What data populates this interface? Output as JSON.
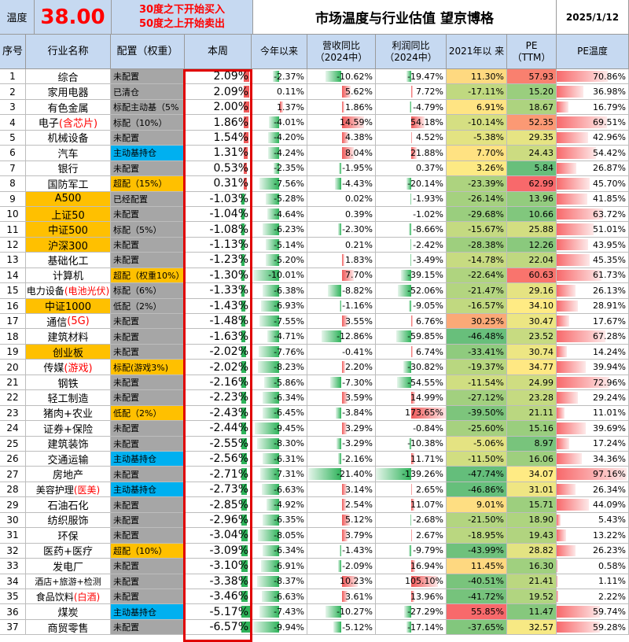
{
  "header": {
    "temp_label": "温度",
    "temp_value": "38.00",
    "rule_line1": "30度之下开始买入",
    "rule_line2": "50度之上开始卖出",
    "title": "市场温度与行业估值 望京博格",
    "date": "2025/1/12"
  },
  "columns": [
    "序号",
    "行业名称",
    "配置（权重）",
    "本周",
    "今年以来",
    "营收同比 （2024中）",
    "利润同比 （2024中）",
    "2021年以 来",
    "PE （TTM）",
    "PE温度"
  ],
  "colors": {
    "header_bg": "#c6d9f1",
    "gray_cell": "#a6a6a6",
    "yellow_cell": "#ffc000",
    "blue_cell": "#00b0f0",
    "temp_red": "#ff0000",
    "bar_green": "#2eb35a",
    "bar_red": "#f05a5a",
    "box_red": "#e00000"
  },
  "rows": [
    {
      "n": "1",
      "name": "综合",
      "name_red": "",
      "name_color": "none",
      "cfg": "未配置",
      "cfg_color": "gray",
      "week": "2.09%",
      "week_v": 2.09,
      "ytd": "-2.37%",
      "ytd_v": -2.37,
      "rev": "-10.62%",
      "rev_v": -10.62,
      "profit": "-19.47%",
      "profit_v": -19.47,
      "since2021": "11.30%",
      "since_v": 11.3,
      "pe": "57.93",
      "pe_v": 57.93,
      "pet": "70.86%",
      "pet_v": 70.86
    },
    {
      "n": "2",
      "name": "家用电器",
      "name_red": "",
      "name_color": "none",
      "cfg": "已清仓",
      "cfg_color": "gray",
      "week": "2.09%",
      "week_v": 2.09,
      "ytd": "0.11%",
      "ytd_v": 0.11,
      "rev": "5.62%",
      "rev_v": 5.62,
      "profit": "7.72%",
      "profit_v": 7.72,
      "since2021": "-17.11%",
      "since_v": -17.11,
      "pe": "15.20",
      "pe_v": 15.2,
      "pet": "36.98%",
      "pet_v": 36.98
    },
    {
      "n": "3",
      "name": "有色金属",
      "name_red": "",
      "name_color": "none",
      "cfg": "标配主动基（5%",
      "cfg_color": "gray",
      "week": "2.00%",
      "week_v": 2.0,
      "ytd": "1.37%",
      "ytd_v": 1.37,
      "rev": "1.86%",
      "rev_v": 1.86,
      "profit": "-4.79%",
      "profit_v": -4.79,
      "since2021": "6.91%",
      "since_v": 6.91,
      "pe": "18.67",
      "pe_v": 18.67,
      "pet": "16.79%",
      "pet_v": 16.79
    },
    {
      "n": "4",
      "name": "电子",
      "name_red": "(含芯片)",
      "name_color": "none",
      "cfg": "标配（10%）",
      "cfg_color": "gray",
      "week": "1.86%",
      "week_v": 1.86,
      "ytd": "-4.01%",
      "ytd_v": -4.01,
      "rev": "14.59%",
      "rev_v": 14.59,
      "profit": "54.18%",
      "profit_v": 54.18,
      "since2021": "-10.14%",
      "since_v": -10.14,
      "pe": "52.35",
      "pe_v": 52.35,
      "pet": "69.51%",
      "pet_v": 69.51
    },
    {
      "n": "5",
      "name": "机械设备",
      "name_red": "",
      "name_color": "none",
      "cfg": "未配置",
      "cfg_color": "gray",
      "week": "1.54%",
      "week_v": 1.54,
      "ytd": "-4.20%",
      "ytd_v": -4.2,
      "rev": "4.38%",
      "rev_v": 4.38,
      "profit": "4.52%",
      "profit_v": 4.52,
      "since2021": "-5.38%",
      "since_v": -5.38,
      "pe": "29.35",
      "pe_v": 29.35,
      "pet": "42.96%",
      "pet_v": 42.96
    },
    {
      "n": "6",
      "name": "汽车",
      "name_red": "",
      "name_color": "none",
      "cfg": "主动基持仓",
      "cfg_color": "blue",
      "week": "1.31%",
      "week_v": 1.31,
      "ytd": "-4.24%",
      "ytd_v": -4.24,
      "rev": "8.04%",
      "rev_v": 8.04,
      "profit": "21.88%",
      "profit_v": 21.88,
      "since2021": "7.70%",
      "since_v": 7.7,
      "pe": "24.43",
      "pe_v": 24.43,
      "pet": "54.42%",
      "pet_v": 54.42
    },
    {
      "n": "7",
      "name": "银行",
      "name_red": "",
      "name_color": "none",
      "cfg": "未配置",
      "cfg_color": "gray",
      "week": "0.53%",
      "week_v": 0.53,
      "ytd": "-2.35%",
      "ytd_v": -2.35,
      "rev": "-1.95%",
      "rev_v": -1.95,
      "profit": "0.37%",
      "profit_v": 0.37,
      "since2021": "3.26%",
      "since_v": 3.26,
      "pe": "5.84",
      "pe_v": 5.84,
      "pet": "26.87%",
      "pet_v": 26.87
    },
    {
      "n": "8",
      "name": "国防军工",
      "name_red": "",
      "name_color": "none",
      "cfg": "超配（15%）",
      "cfg_color": "yellow",
      "week": "0.31%",
      "week_v": 0.31,
      "ytd": "-7.56%",
      "ytd_v": -7.56,
      "rev": "-4.43%",
      "rev_v": -4.43,
      "profit": "-20.14%",
      "profit_v": -20.14,
      "since2021": "-23.39%",
      "since_v": -23.39,
      "pe": "62.99",
      "pe_v": 62.99,
      "pet": "45.70%",
      "pet_v": 45.7
    },
    {
      "n": "9",
      "name": "A500",
      "name_red": "",
      "name_color": "yellow",
      "cfg": "已经配置",
      "cfg_color": "gray",
      "week": "-1.03%",
      "week_v": -1.03,
      "ytd": "-5.28%",
      "ytd_v": -5.28,
      "rev": "0.02%",
      "rev_v": 0.02,
      "profit": "-1.93%",
      "profit_v": -1.93,
      "since2021": "-26.14%",
      "since_v": -26.14,
      "pe": "13.96",
      "pe_v": 13.96,
      "pet": "41.85%",
      "pet_v": 41.85
    },
    {
      "n": "10",
      "name": "上证50",
      "name_red": "",
      "name_color": "yellow",
      "cfg": "未配置",
      "cfg_color": "gray",
      "week": "-1.04%",
      "week_v": -1.04,
      "ytd": "-4.64%",
      "ytd_v": -4.64,
      "rev": "0.39%",
      "rev_v": 0.39,
      "profit": "-1.02%",
      "profit_v": -1.02,
      "since2021": "-29.68%",
      "since_v": -29.68,
      "pe": "10.66",
      "pe_v": 10.66,
      "pet": "63.72%",
      "pet_v": 63.72
    },
    {
      "n": "11",
      "name": "中证500",
      "name_red": "",
      "name_color": "yellow",
      "cfg": "标配（5%）",
      "cfg_color": "gray",
      "week": "-1.08%",
      "week_v": -1.08,
      "ytd": "-6.23%",
      "ytd_v": -6.23,
      "rev": "-2.30%",
      "rev_v": -2.3,
      "profit": "-8.66%",
      "profit_v": -8.66,
      "since2021": "-15.67%",
      "since_v": -15.67,
      "pe": "25.88",
      "pe_v": 25.88,
      "pet": "51.01%",
      "pet_v": 51.01
    },
    {
      "n": "12",
      "name": "沪深300",
      "name_red": "",
      "name_color": "yellow",
      "cfg": "未配置",
      "cfg_color": "gray",
      "week": "-1.13%",
      "week_v": -1.13,
      "ytd": "-5.14%",
      "ytd_v": -5.14,
      "rev": "0.21%",
      "rev_v": 0.21,
      "profit": "-2.42%",
      "profit_v": -2.42,
      "since2021": "-28.38%",
      "since_v": -28.38,
      "pe": "12.26",
      "pe_v": 12.26,
      "pet": "43.95%",
      "pet_v": 43.95
    },
    {
      "n": "13",
      "name": "基础化工",
      "name_red": "",
      "name_color": "none",
      "cfg": "未配置",
      "cfg_color": "gray",
      "week": "-1.23%",
      "week_v": -1.23,
      "ytd": "-5.20%",
      "ytd_v": -5.2,
      "rev": "1.83%",
      "rev_v": 1.83,
      "profit": "-3.49%",
      "profit_v": -3.49,
      "since2021": "-14.78%",
      "since_v": -14.78,
      "pe": "22.04",
      "pe_v": 22.04,
      "pet": "45.35%",
      "pet_v": 45.35
    },
    {
      "n": "14",
      "name": "计算机",
      "name_red": "",
      "name_color": "none",
      "cfg": "超配（权重10%）",
      "cfg_color": "yellow",
      "week": "-1.30%",
      "week_v": -1.3,
      "ytd": "-10.01%",
      "ytd_v": -10.01,
      "rev": "7.70%",
      "rev_v": 7.7,
      "profit": "-39.15%",
      "profit_v": -39.15,
      "since2021": "-22.64%",
      "since_v": -22.64,
      "pe": "60.63",
      "pe_v": 60.63,
      "pet": "61.73%",
      "pet_v": 61.73
    },
    {
      "n": "15",
      "name": "电力设备",
      "name_red": "(电池光伏)",
      "name_color": "none",
      "cfg": "标配（6%）",
      "cfg_color": "gray",
      "week": "-1.33%",
      "week_v": -1.33,
      "ytd": "-6.38%",
      "ytd_v": -6.38,
      "rev": "-8.82%",
      "rev_v": -8.82,
      "profit": "-52.06%",
      "profit_v": -52.06,
      "since2021": "-21.47%",
      "since_v": -21.47,
      "pe": "29.16",
      "pe_v": 29.16,
      "pet": "26.13%",
      "pet_v": 26.13
    },
    {
      "n": "16",
      "name": "中证1000",
      "name_red": "",
      "name_color": "yellow",
      "cfg": "低配（2%）",
      "cfg_color": "gray",
      "week": "-1.43%",
      "week_v": -1.43,
      "ytd": "-6.93%",
      "ytd_v": -6.93,
      "rev": "-1.16%",
      "rev_v": -1.16,
      "profit": "-9.05%",
      "profit_v": -9.05,
      "since2021": "-16.57%",
      "since_v": -16.57,
      "pe": "34.10",
      "pe_v": 34.1,
      "pet": "28.91%",
      "pet_v": 28.91
    },
    {
      "n": "17",
      "name": "通信",
      "name_red": "(5G)",
      "name_color": "none",
      "cfg": "未配置",
      "cfg_color": "gray",
      "week": "-1.48%",
      "week_v": -1.48,
      "ytd": "-7.55%",
      "ytd_v": -7.55,
      "rev": "3.55%",
      "rev_v": 3.55,
      "profit": "6.76%",
      "profit_v": 6.76,
      "since2021": "30.25%",
      "since_v": 30.25,
      "pe": "30.47",
      "pe_v": 30.47,
      "pet": "17.67%",
      "pet_v": 17.67
    },
    {
      "n": "18",
      "name": "建筑材料",
      "name_red": "",
      "name_color": "none",
      "cfg": "未配置",
      "cfg_color": "gray",
      "week": "-1.63%",
      "week_v": -1.63,
      "ytd": "-4.71%",
      "ytd_v": -4.71,
      "rev": "-12.86%",
      "rev_v": -12.86,
      "profit": "-59.85%",
      "profit_v": -59.85,
      "since2021": "-46.48%",
      "since_v": -46.48,
      "pe": "23.52",
      "pe_v": 23.52,
      "pet": "67.28%",
      "pet_v": 67.28
    },
    {
      "n": "19",
      "name": "创业板",
      "name_red": "",
      "name_color": "yellow",
      "cfg": "未配置",
      "cfg_color": "gray",
      "week": "-2.02%",
      "week_v": -2.02,
      "ytd": "-7.76%",
      "ytd_v": -7.76,
      "rev": "-0.41%",
      "rev_v": -0.41,
      "profit": "6.74%",
      "profit_v": 6.74,
      "since2021": "-33.41%",
      "since_v": -33.41,
      "pe": "30.74",
      "pe_v": 30.74,
      "pet": "14.24%",
      "pet_v": 14.24
    },
    {
      "n": "20",
      "name": "传媒",
      "name_red": "(游戏)",
      "name_color": "none",
      "cfg": "标配(游戏3%)",
      "cfg_color": "yellow",
      "week": "-2.02%",
      "week_v": -2.02,
      "ytd": "-8.23%",
      "ytd_v": -8.23,
      "rev": "2.20%",
      "rev_v": 2.2,
      "profit": "-30.82%",
      "profit_v": -30.82,
      "since2021": "-19.37%",
      "since_v": -19.37,
      "pe": "34.77",
      "pe_v": 34.77,
      "pet": "39.94%",
      "pet_v": 39.94
    },
    {
      "n": "21",
      "name": "钢铁",
      "name_red": "",
      "name_color": "none",
      "cfg": "未配置",
      "cfg_color": "gray",
      "week": "-2.16%",
      "week_v": -2.16,
      "ytd": "-5.86%",
      "ytd_v": -5.86,
      "rev": "-7.30%",
      "rev_v": -7.3,
      "profit": "-54.55%",
      "profit_v": -54.55,
      "since2021": "-11.54%",
      "since_v": -11.54,
      "pe": "24.99",
      "pe_v": 24.99,
      "pet": "72.96%",
      "pet_v": 72.96
    },
    {
      "n": "22",
      "name": "轻工制造",
      "name_red": "",
      "name_color": "none",
      "cfg": "未配置",
      "cfg_color": "gray",
      "week": "-2.23%",
      "week_v": -2.23,
      "ytd": "-6.34%",
      "ytd_v": -6.34,
      "rev": "3.59%",
      "rev_v": 3.59,
      "profit": "14.99%",
      "profit_v": 14.99,
      "since2021": "-27.12%",
      "since_v": -27.12,
      "pe": "23.28",
      "pe_v": 23.28,
      "pet": "29.24%",
      "pet_v": 29.24
    },
    {
      "n": "23",
      "name": "猪肉+农业",
      "name_red": "",
      "name_color": "none",
      "cfg": "低配（2%）",
      "cfg_color": "yellow",
      "week": "-2.43%",
      "week_v": -2.43,
      "ytd": "-6.45%",
      "ytd_v": -6.45,
      "rev": "-3.84%",
      "rev_v": -3.84,
      "profit": "173.65%",
      "profit_v": 173.65,
      "since2021": "-39.50%",
      "since_v": -39.5,
      "pe": "21.11",
      "pe_v": 21.11,
      "pet": "11.01%",
      "pet_v": 11.01
    },
    {
      "n": "24",
      "name": "证券+保险",
      "name_red": "",
      "name_color": "none",
      "cfg": "未配置",
      "cfg_color": "gray",
      "week": "-2.44%",
      "week_v": -2.44,
      "ytd": "-9.45%",
      "ytd_v": -9.45,
      "rev": "3.29%",
      "rev_v": 3.29,
      "profit": "-0.84%",
      "profit_v": -0.84,
      "since2021": "-25.60%",
      "since_v": -25.6,
      "pe": "15.16",
      "pe_v": 15.16,
      "pet": "39.69%",
      "pet_v": 39.69
    },
    {
      "n": "25",
      "name": "建筑装饰",
      "name_red": "",
      "name_color": "none",
      "cfg": "未配置",
      "cfg_color": "gray",
      "week": "-2.55%",
      "week_v": -2.55,
      "ytd": "-8.30%",
      "ytd_v": -8.3,
      "rev": "-3.29%",
      "rev_v": -3.29,
      "profit": "-10.38%",
      "profit_v": -10.38,
      "since2021": "-5.06%",
      "since_v": -5.06,
      "pe": "8.97",
      "pe_v": 8.97,
      "pet": "17.24%",
      "pet_v": 17.24
    },
    {
      "n": "26",
      "name": "交通运输",
      "name_red": "",
      "name_color": "none",
      "cfg": "主动基持仓",
      "cfg_color": "blue",
      "week": "-2.56%",
      "week_v": -2.56,
      "ytd": "-6.31%",
      "ytd_v": -6.31,
      "rev": "-2.16%",
      "rev_v": -2.16,
      "profit": "11.71%",
      "profit_v": 11.71,
      "since2021": "-11.50%",
      "since_v": -11.5,
      "pe": "16.06",
      "pe_v": 16.06,
      "pet": "34.36%",
      "pet_v": 34.36
    },
    {
      "n": "27",
      "name": "房地产",
      "name_red": "",
      "name_color": "none",
      "cfg": "未配置",
      "cfg_color": "gray",
      "week": "-2.71%",
      "week_v": -2.71,
      "ytd": "-7.31%",
      "ytd_v": -7.31,
      "rev": "-21.40%",
      "rev_v": -21.4,
      "profit": "-139.26%",
      "profit_v": -139.26,
      "since2021": "-47.74%",
      "since_v": -47.74,
      "pe": "34.07",
      "pe_v": 34.07,
      "pet": "97.16%",
      "pet_v": 97.16
    },
    {
      "n": "28",
      "name": "美容护理",
      "name_red": "(医美)",
      "name_color": "none",
      "cfg": "主动基持仓",
      "cfg_color": "blue",
      "week": "-2.73%",
      "week_v": -2.73,
      "ytd": "-6.63%",
      "ytd_v": -6.63,
      "rev": "3.14%",
      "rev_v": 3.14,
      "profit": "2.65%",
      "profit_v": 2.65,
      "since2021": "-46.86%",
      "since_v": -46.86,
      "pe": "31.01",
      "pe_v": 31.01,
      "pet": "26.34%",
      "pet_v": 26.34
    },
    {
      "n": "29",
      "name": "石油石化",
      "name_red": "",
      "name_color": "none",
      "cfg": "未配置",
      "cfg_color": "gray",
      "week": "-2.85%",
      "week_v": -2.85,
      "ytd": "-4.92%",
      "ytd_v": -4.92,
      "rev": "2.54%",
      "rev_v": 2.54,
      "profit": "11.07%",
      "profit_v": 11.07,
      "since2021": "9.01%",
      "since_v": 9.01,
      "pe": "15.71",
      "pe_v": 15.71,
      "pet": "44.09%",
      "pet_v": 44.09
    },
    {
      "n": "30",
      "name": "纺织服饰",
      "name_red": "",
      "name_color": "none",
      "cfg": "未配置",
      "cfg_color": "gray",
      "week": "-2.96%",
      "week_v": -2.96,
      "ytd": "-6.35%",
      "ytd_v": -6.35,
      "rev": "5.12%",
      "rev_v": 5.12,
      "profit": "-2.68%",
      "profit_v": -2.68,
      "since2021": "-21.50%",
      "since_v": -21.5,
      "pe": "18.90",
      "pe_v": 18.9,
      "pet": "5.43%",
      "pet_v": 5.43
    },
    {
      "n": "31",
      "name": "环保",
      "name_red": "",
      "name_color": "none",
      "cfg": "未配置",
      "cfg_color": "gray",
      "week": "-3.04%",
      "week_v": -3.04,
      "ytd": "-8.05%",
      "ytd_v": -8.05,
      "rev": "3.79%",
      "rev_v": 3.79,
      "profit": "2.67%",
      "profit_v": 2.67,
      "since2021": "-18.95%",
      "since_v": -18.95,
      "pe": "19.43",
      "pe_v": 19.43,
      "pet": "13.22%",
      "pet_v": 13.22
    },
    {
      "n": "32",
      "name": "医药+医疗",
      "name_red": "",
      "name_color": "none",
      "cfg": "超配（10%）",
      "cfg_color": "yellow",
      "week": "-3.09%",
      "week_v": -3.09,
      "ytd": "-6.34%",
      "ytd_v": -6.34,
      "rev": "-1.43%",
      "rev_v": -1.43,
      "profit": "-9.79%",
      "profit_v": -9.79,
      "since2021": "-43.99%",
      "since_v": -43.99,
      "pe": "28.82",
      "pe_v": 28.82,
      "pet": "26.23%",
      "pet_v": 26.23
    },
    {
      "n": "33",
      "name": "发电厂",
      "name_red": "",
      "name_color": "none",
      "cfg": "未配置",
      "cfg_color": "gray",
      "week": "-3.10%",
      "week_v": -3.1,
      "ytd": "-6.91%",
      "ytd_v": -6.91,
      "rev": "-2.09%",
      "rev_v": -2.09,
      "profit": "16.94%",
      "profit_v": 16.94,
      "since2021": "11.45%",
      "since_v": 11.45,
      "pe": "16.30",
      "pe_v": 16.3,
      "pet": "0.58%",
      "pet_v": 0.58
    },
    {
      "n": "34",
      "name": "酒店+旅游+检测",
      "name_red": "",
      "name_color": "none",
      "cfg": "未配置",
      "cfg_color": "gray",
      "week": "-3.38%",
      "week_v": -3.38,
      "ytd": "-8.37%",
      "ytd_v": -8.37,
      "rev": "10.23%",
      "rev_v": 10.23,
      "profit": "105.10%",
      "profit_v": 105.1,
      "since2021": "-40.51%",
      "since_v": -40.51,
      "pe": "21.41",
      "pe_v": 21.41,
      "pet": "1.11%",
      "pet_v": 1.11
    },
    {
      "n": "35",
      "name": "食品饮料",
      "name_red": "(白酒)",
      "name_color": "none",
      "cfg": "未配置",
      "cfg_color": "gray",
      "week": "-3.46%",
      "week_v": -3.46,
      "ytd": "-6.63%",
      "ytd_v": -6.63,
      "rev": "3.61%",
      "rev_v": 3.61,
      "profit": "13.96%",
      "profit_v": 13.96,
      "since2021": "-41.72%",
      "since_v": -41.72,
      "pe": "19.52",
      "pe_v": 19.52,
      "pet": "2.22%",
      "pet_v": 2.22
    },
    {
      "n": "36",
      "name": "煤炭",
      "name_red": "",
      "name_color": "none",
      "cfg": "主动基持仓",
      "cfg_color": "blue",
      "week": "-5.17%",
      "week_v": -5.17,
      "ytd": "-7.43%",
      "ytd_v": -7.43,
      "rev": "-10.27%",
      "rev_v": -10.27,
      "profit": "-27.29%",
      "profit_v": -27.29,
      "since2021": "55.85%",
      "since_v": 55.85,
      "pe": "11.47",
      "pe_v": 11.47,
      "pet": "59.74%",
      "pet_v": 59.74
    },
    {
      "n": "37",
      "name": "商贸零售",
      "name_red": "",
      "name_color": "none",
      "cfg": "未配置",
      "cfg_color": "gray",
      "week": "-6.57%",
      "week_v": -6.57,
      "ytd": "-9.94%",
      "ytd_v": -9.94,
      "rev": "-5.12%",
      "rev_v": -5.12,
      "profit": "-17.14%",
      "profit_v": -17.14,
      "since2021": "-37.65%",
      "since_v": -37.65,
      "pe": "32.57",
      "pe_v": 32.57,
      "pet": "59.28%",
      "pet_v": 59.28
    }
  ]
}
